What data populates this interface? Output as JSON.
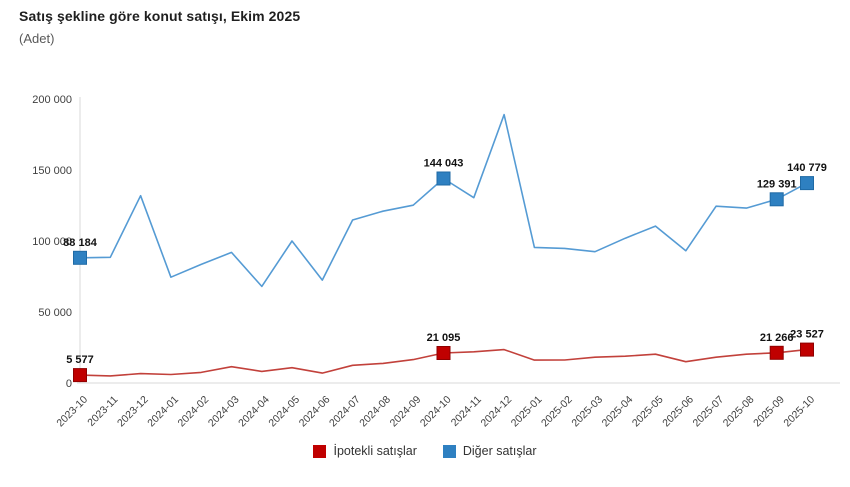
{
  "chart_data": {
    "type": "line",
    "title": "Satış şekline göre konut satışı, Ekim 2025",
    "unit_label": "(Adet)",
    "categories": [
      "2023-10",
      "2023-11",
      "2023-12",
      "2024-01",
      "2024-02",
      "2024-03",
      "2024-04",
      "2024-05",
      "2024-06",
      "2024-07",
      "2024-08",
      "2024-09",
      "2024-10",
      "2024-11",
      "2024-12",
      "2025-01",
      "2025-02",
      "2025-03",
      "2025-04",
      "2025-05",
      "2025-06",
      "2025-07",
      "2025-08",
      "2025-09",
      "2025-10"
    ],
    "series": [
      {
        "name": "İpotekli satışlar",
        "slug": "ipotekli-satislar",
        "line_color": "#c2413b",
        "marker_color": "#c00000",
        "marker_stroke": "#8f0000",
        "values": [
          5577,
          5000,
          6600,
          6000,
          7500,
          11500,
          8200,
          10800,
          7000,
          12500,
          13800,
          16500,
          21095,
          22000,
          23500,
          16100,
          16200,
          18200,
          18900,
          20300,
          15000,
          18200,
          20300,
          21266,
          23527
        ],
        "point_labels": {
          "0": "5 577",
          "12": "21 095",
          "23": "21 266",
          "24": "23 527"
        }
      },
      {
        "name": "Diğer satışlar",
        "slug": "diger-satislar",
        "line_color": "#559bd4",
        "marker_color": "#2e80c1",
        "marker_stroke": "#1f6aa5",
        "values": [
          88184,
          88500,
          131900,
          74500,
          83500,
          92000,
          68000,
          100000,
          72500,
          114800,
          121000,
          125200,
          144043,
          130500,
          189000,
          95500,
          94800,
          92500,
          102000,
          110500,
          93100,
          124500,
          123200,
          129391,
          140779
        ],
        "point_labels": {
          "0": "88 184",
          "12": "144 043",
          "23": "129 391",
          "24": "140 779"
        }
      }
    ],
    "ylim": [
      0,
      200000
    ],
    "yticks": [
      0,
      50000,
      100000,
      150000,
      200000
    ],
    "ytick_labels": [
      "0",
      "50 000",
      "100 000",
      "150 000",
      "200 000"
    ],
    "grid": false,
    "legend_position": "bottom",
    "axis_color": "#d9d9d9",
    "tick_text_color": "#404040",
    "data_label_color": "#111111"
  }
}
